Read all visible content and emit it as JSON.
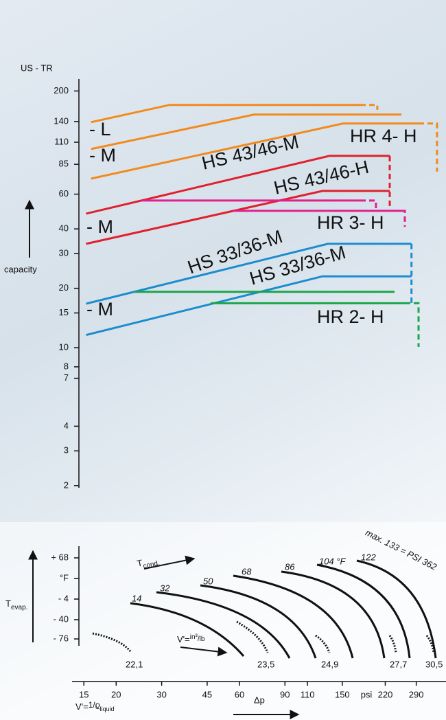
{
  "chart_data": {
    "type": "line",
    "y_unit": "US - TR",
    "y_label": "capacity",
    "log_y": true,
    "log_x": true,
    "ylim": [
      1.95,
      230
    ],
    "yticks": [
      200,
      140,
      110,
      85,
      60,
      40,
      30,
      20,
      15,
      10,
      8,
      7,
      4,
      3,
      2
    ],
    "xlim": [
      13.5,
      378
    ],
    "xticks": [
      15,
      20,
      30,
      45,
      60,
      90,
      110,
      150,
      220,
      290
    ],
    "x_unit": "psi",
    "x_label": "Δp",
    "lines": [
      {
        "color": "#f28a1e",
        "dashed": false,
        "x": [
          16.0,
          32.2,
          176
        ],
        "y": [
          139,
          170,
          170
        ]
      },
      {
        "color": "#f28a1e",
        "dashed": true,
        "x": [
          176,
          205,
          205
        ],
        "y": [
          170,
          170,
          160.5
        ]
      },
      {
        "color": "#f28a1e",
        "dashed": false,
        "x": [
          16.0,
          68.3,
          254
        ],
        "y": [
          101.6,
          151.8,
          151.8
        ]
      },
      {
        "color": "#f28a1e",
        "dashed": false,
        "x": [
          16.0,
          151,
          296
        ],
        "y": [
          71.9,
          136.8,
          136.8
        ]
      },
      {
        "color": "#f28a1e",
        "dashed": true,
        "x": [
          296,
          349,
          349
        ],
        "y": [
          136.8,
          136.8,
          78
        ]
      },
      {
        "color": "#e0202e",
        "dashed": false,
        "x": [
          15.3,
          133.7,
          229
        ],
        "y": [
          47.8,
          93.8,
          93.8
        ]
      },
      {
        "color": "#e0202e",
        "dashed": true,
        "x": [
          229,
          229
        ],
        "y": [
          93.8,
          52.2
        ]
      },
      {
        "color": "#e0202e",
        "dashed": false,
        "x": [
          15.3,
          125.8,
          229
        ],
        "y": [
          33.6,
          62.3,
          62.3
        ]
      },
      {
        "color": "#e0208c",
        "dashed": false,
        "x": [
          25.2,
          176
        ],
        "y": [
          55.7,
          55.7
        ]
      },
      {
        "color": "#e0208c",
        "dashed": true,
        "x": [
          176,
          202.5,
          202.5
        ],
        "y": [
          55.7,
          55.7,
          50.2
        ]
      },
      {
        "color": "#e0208c",
        "dashed": false,
        "x": [
          56.8,
          254
        ],
        "y": [
          49.4,
          49.4
        ]
      },
      {
        "color": "#e0208c",
        "dashed": true,
        "x": [
          254,
          262,
          262
        ],
        "y": [
          49.4,
          49.4,
          41.0
        ]
      },
      {
        "color": "#1c8ccf",
        "dashed": false,
        "x": [
          15.3,
          132,
          278
        ],
        "y": [
          16.7,
          33.6,
          33.6
        ]
      },
      {
        "color": "#1c8ccf",
        "dashed": true,
        "x": [
          278,
          278
        ],
        "y": [
          33.6,
          16.8
        ]
      },
      {
        "color": "#1c8ccf",
        "dashed": false,
        "x": [
          15.3,
          125.8,
          278
        ],
        "y": [
          11.6,
          23.0,
          23.0
        ]
      },
      {
        "color": "#1aa64a",
        "dashed": false,
        "x": [
          23.7,
          239
        ],
        "y": [
          19.2,
          19.2
        ]
      },
      {
        "color": "#1aa64a",
        "dashed": false,
        "x": [
          46.5,
          262
        ],
        "y": [
          16.8,
          16.8
        ]
      },
      {
        "color": "#1aa64a",
        "dashed": true,
        "x": [
          262,
          296,
          296
        ],
        "y": [
          16.8,
          16.8,
          10.1
        ]
      }
    ],
    "line_labels": [
      {
        "text": "- L",
        "color": "#f28a1e"
      },
      {
        "text": "- M",
        "color": "#f28a1e"
      },
      {
        "text": "HR 4- H",
        "color": "#f28a1e"
      },
      {
        "text": "HS 43/46-M",
        "color": "#e0202e"
      },
      {
        "text": "HS 43/46-H",
        "color": "#e0202e"
      },
      {
        "text": "- M",
        "color": "#e0208c"
      },
      {
        "text": "HR 3- H",
        "color": "#e0208c"
      },
      {
        "text": "HS 33/36-M",
        "color": "#1c8ccf"
      },
      {
        "text": "HS 33/36-M",
        "color": "#1c8ccf"
      },
      {
        "text": "- M",
        "color": "#1aa64a"
      },
      {
        "text": "HR 2- H",
        "color": "#1aa64a"
      }
    ],
    "t_evap_ticks": [
      "+ 68",
      "°F",
      "- 4",
      "- 40",
      "- 76"
    ],
    "t_evap_label": {
      "main": "T",
      "sub": "evap."
    },
    "t_cond_label": {
      "main": "T",
      "sub": "cond."
    },
    "t_cond_values": [
      "14",
      "32",
      "50",
      "68",
      "86",
      "104 °F",
      "122",
      "max. 133 = PSI 362"
    ],
    "v_rate_label": {
      "main": "V'=",
      "num": "in³",
      "den": "/lb"
    },
    "v_values": [
      "22,1",
      "23,5",
      "24,9",
      "27,7",
      "30,5"
    ],
    "v_formula": {
      "main": "V'=",
      "num": "1/ϱ",
      "sub": "liquid"
    }
  }
}
